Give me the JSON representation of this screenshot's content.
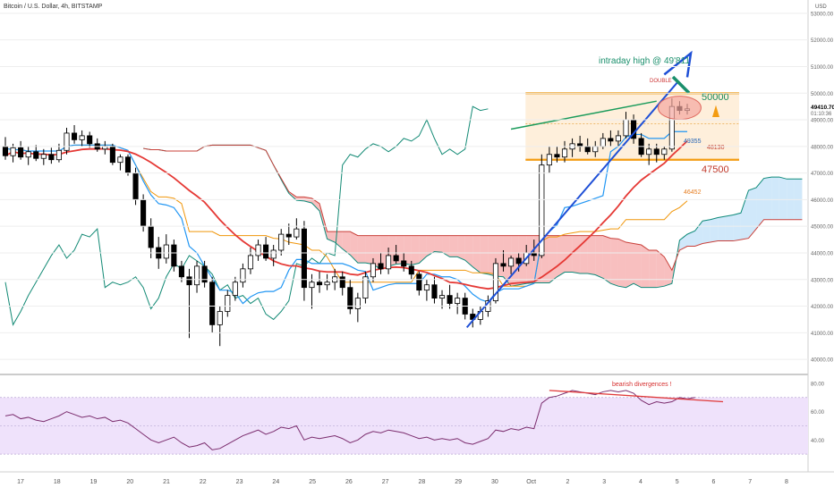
{
  "header": {
    "symbol": "Bitcoin / U.S. Dollar, 4h, BITSTAMP",
    "currency": "USD"
  },
  "colors": {
    "up_candle": "#ffffff",
    "down_candle": "#000000",
    "conversion_line": "#2196f3",
    "base_line": "#e53935",
    "lagging_span": "#138a75",
    "kumo_bull_fill": "#a9d6f5",
    "kumo_bear_fill": "#f28b8b",
    "trendline": "#1e4fd6",
    "orange_level": "#f39c12",
    "rsi_band": "#efe2fb",
    "rsi_line": "#7b2d6e"
  },
  "chart_data": [
    {
      "type": "candlestick",
      "title": "",
      "ylim": [
        39500,
        53500
      ],
      "y_ticks": [
        "40000.00",
        "41000.00",
        "42000.00",
        "43000.00",
        "44000.00",
        "45000.00",
        "46000.00",
        "47000.00",
        "48000.00",
        "49000.00",
        "50000.00",
        "51000.00",
        "52000.00",
        "53000.00"
      ],
      "last_price": "49410.70",
      "countdown": "01:10:36",
      "x_tick_labels": [
        "17",
        "18",
        "19",
        "20",
        "21",
        "22",
        "23",
        "24",
        "25",
        "26",
        "27",
        "28",
        "29",
        "30",
        "Oct",
        "2",
        "3",
        "4",
        "5",
        "6",
        "7",
        "8"
      ],
      "candles": [
        {
          "o": 48000,
          "h": 48350,
          "l": 47500,
          "c": 47650
        },
        {
          "o": 47650,
          "h": 48100,
          "l": 47400,
          "c": 47950
        },
        {
          "o": 47950,
          "h": 48200,
          "l": 47500,
          "c": 47600
        },
        {
          "o": 47600,
          "h": 48000,
          "l": 47300,
          "c": 47800
        },
        {
          "o": 47800,
          "h": 48050,
          "l": 47450,
          "c": 47550
        },
        {
          "o": 47550,
          "h": 47900,
          "l": 47300,
          "c": 47700
        },
        {
          "o": 47700,
          "h": 47950,
          "l": 47350,
          "c": 47500
        },
        {
          "o": 47500,
          "h": 48100,
          "l": 47400,
          "c": 47850
        },
        {
          "o": 47850,
          "h": 48700,
          "l": 47700,
          "c": 48500
        },
        {
          "o": 48500,
          "h": 48800,
          "l": 48100,
          "c": 48250
        },
        {
          "o": 48250,
          "h": 48600,
          "l": 48000,
          "c": 48400
        },
        {
          "o": 48400,
          "h": 48550,
          "l": 47950,
          "c": 48100
        },
        {
          "o": 48100,
          "h": 48300,
          "l": 47800,
          "c": 47900
        },
        {
          "o": 47900,
          "h": 48200,
          "l": 47700,
          "c": 48000
        },
        {
          "o": 48000,
          "h": 48100,
          "l": 47300,
          "c": 47400
        },
        {
          "o": 47400,
          "h": 47700,
          "l": 47100,
          "c": 47600
        },
        {
          "o": 47600,
          "h": 47700,
          "l": 46900,
          "c": 47000
        },
        {
          "o": 47000,
          "h": 47200,
          "l": 45800,
          "c": 46000
        },
        {
          "o": 46000,
          "h": 46200,
          "l": 44800,
          "c": 45000
        },
        {
          "o": 45000,
          "h": 45300,
          "l": 43800,
          "c": 44200
        },
        {
          "o": 44200,
          "h": 44600,
          "l": 43400,
          "c": 43800
        },
        {
          "o": 43800,
          "h": 44700,
          "l": 43600,
          "c": 44300
        },
        {
          "o": 44300,
          "h": 44500,
          "l": 43300,
          "c": 43500
        },
        {
          "o": 43500,
          "h": 43700,
          "l": 42900,
          "c": 43100
        },
        {
          "o": 43100,
          "h": 43400,
          "l": 40800,
          "c": 42800
        },
        {
          "o": 42800,
          "h": 43700,
          "l": 42500,
          "c": 43500
        },
        {
          "o": 43500,
          "h": 43700,
          "l": 42700,
          "c": 42900
        },
        {
          "o": 42900,
          "h": 43100,
          "l": 41000,
          "c": 41300
        },
        {
          "o": 41300,
          "h": 42000,
          "l": 40500,
          "c": 41800
        },
        {
          "o": 41800,
          "h": 42600,
          "l": 41600,
          "c": 42400
        },
        {
          "o": 42400,
          "h": 43100,
          "l": 42200,
          "c": 42900
        },
        {
          "o": 42900,
          "h": 43600,
          "l": 42700,
          "c": 43400
        },
        {
          "o": 43400,
          "h": 44200,
          "l": 43200,
          "c": 43900
        },
        {
          "o": 43900,
          "h": 44500,
          "l": 43700,
          "c": 44300
        },
        {
          "o": 44300,
          "h": 44600,
          "l": 43700,
          "c": 43800
        },
        {
          "o": 43800,
          "h": 44300,
          "l": 43500,
          "c": 44100
        },
        {
          "o": 44100,
          "h": 44900,
          "l": 43900,
          "c": 44700
        },
        {
          "o": 44700,
          "h": 45100,
          "l": 44300,
          "c": 44600
        },
        {
          "o": 44600,
          "h": 45300,
          "l": 44500,
          "c": 44900
        },
        {
          "o": 44900,
          "h": 45200,
          "l": 42200,
          "c": 42700
        },
        {
          "o": 42700,
          "h": 43200,
          "l": 41900,
          "c": 42900
        },
        {
          "o": 42900,
          "h": 43300,
          "l": 42500,
          "c": 42800
        },
        {
          "o": 42800,
          "h": 43200,
          "l": 42600,
          "c": 42900
        },
        {
          "o": 42900,
          "h": 43400,
          "l": 42600,
          "c": 43100
        },
        {
          "o": 43100,
          "h": 43300,
          "l": 42400,
          "c": 42700
        },
        {
          "o": 42700,
          "h": 43000,
          "l": 41700,
          "c": 41900
        },
        {
          "o": 41900,
          "h": 42500,
          "l": 41400,
          "c": 42300
        },
        {
          "o": 42300,
          "h": 43300,
          "l": 42100,
          "c": 43100
        },
        {
          "o": 43100,
          "h": 43800,
          "l": 42900,
          "c": 43600
        },
        {
          "o": 43600,
          "h": 44000,
          "l": 43200,
          "c": 43400
        },
        {
          "o": 43400,
          "h": 44200,
          "l": 43200,
          "c": 43900
        },
        {
          "o": 43900,
          "h": 44300,
          "l": 43600,
          "c": 43700
        },
        {
          "o": 43700,
          "h": 44000,
          "l": 43300,
          "c": 43500
        },
        {
          "o": 43500,
          "h": 43700,
          "l": 43000,
          "c": 43200
        },
        {
          "o": 43200,
          "h": 43300,
          "l": 42400,
          "c": 42600
        },
        {
          "o": 42600,
          "h": 43000,
          "l": 42200,
          "c": 42800
        },
        {
          "o": 42800,
          "h": 43100,
          "l": 42100,
          "c": 42300
        },
        {
          "o": 42300,
          "h": 42600,
          "l": 41900,
          "c": 42400
        },
        {
          "o": 42400,
          "h": 42800,
          "l": 41900,
          "c": 42100
        },
        {
          "o": 42100,
          "h": 42500,
          "l": 41700,
          "c": 42300
        },
        {
          "o": 42300,
          "h": 42500,
          "l": 41500,
          "c": 41700
        },
        {
          "o": 41700,
          "h": 41900,
          "l": 41200,
          "c": 41500
        },
        {
          "o": 41500,
          "h": 42000,
          "l": 41300,
          "c": 41800
        },
        {
          "o": 41800,
          "h": 42400,
          "l": 41600,
          "c": 42200
        },
        {
          "o": 42200,
          "h": 43800,
          "l": 42100,
          "c": 43600
        },
        {
          "o": 43600,
          "h": 44100,
          "l": 43300,
          "c": 43500
        },
        {
          "o": 43500,
          "h": 43900,
          "l": 43200,
          "c": 43800
        },
        {
          "o": 43800,
          "h": 44000,
          "l": 43300,
          "c": 43600
        },
        {
          "o": 43600,
          "h": 44300,
          "l": 43500,
          "c": 44000
        },
        {
          "o": 44000,
          "h": 44500,
          "l": 43700,
          "c": 43900
        },
        {
          "o": 43900,
          "h": 47700,
          "l": 43800,
          "c": 47300
        },
        {
          "o": 47300,
          "h": 48000,
          "l": 47000,
          "c": 47700
        },
        {
          "o": 47700,
          "h": 48000,
          "l": 47400,
          "c": 47600
        },
        {
          "o": 47600,
          "h": 48200,
          "l": 47400,
          "c": 47900
        },
        {
          "o": 47900,
          "h": 48300,
          "l": 47600,
          "c": 48100
        },
        {
          "o": 48100,
          "h": 48400,
          "l": 47800,
          "c": 48000
        },
        {
          "o": 48000,
          "h": 48300,
          "l": 47700,
          "c": 47800
        },
        {
          "o": 47800,
          "h": 48200,
          "l": 47600,
          "c": 48000
        },
        {
          "o": 48000,
          "h": 48500,
          "l": 47900,
          "c": 48300
        },
        {
          "o": 48300,
          "h": 48600,
          "l": 48000,
          "c": 48200
        },
        {
          "o": 48200,
          "h": 48600,
          "l": 48000,
          "c": 48400
        },
        {
          "o": 48400,
          "h": 49300,
          "l": 48300,
          "c": 49000
        },
        {
          "o": 49000,
          "h": 49200,
          "l": 48100,
          "c": 48300
        },
        {
          "o": 48300,
          "h": 48500,
          "l": 47600,
          "c": 47700
        },
        {
          "o": 47700,
          "h": 48100,
          "l": 47300,
          "c": 47900
        },
        {
          "o": 47900,
          "h": 48100,
          "l": 47400,
          "c": 47700
        },
        {
          "o": 47700,
          "h": 48000,
          "l": 47500,
          "c": 47900
        },
        {
          "o": 47900,
          "h": 49811,
          "l": 47800,
          "c": 49500
        },
        {
          "o": 49500,
          "h": 49700,
          "l": 49200,
          "c": 49350
        },
        {
          "o": 49350,
          "h": 49600,
          "l": 49200,
          "c": 49410.7
        }
      ],
      "annotations": [
        {
          "text": "intraday high  @ 49'811"
        },
        {
          "text": "DOUBLE"
        },
        {
          "text": "50000"
        },
        {
          "text": "49355"
        },
        {
          "text": "48130"
        },
        {
          "text": "47500"
        },
        {
          "text": "46452"
        }
      ]
    },
    {
      "type": "line",
      "title": "",
      "ylim": [
        20,
        85
      ],
      "y_ticks": [
        "40.00",
        "60.00",
        "80.00"
      ],
      "series": [
        {
          "values": [
            57,
            58,
            55,
            56,
            54,
            53,
            55,
            57,
            60,
            58,
            56,
            57,
            55,
            56,
            53,
            54,
            52,
            48,
            44,
            40,
            38,
            40,
            42,
            38,
            35,
            36,
            38,
            33,
            34,
            37,
            40,
            43,
            45,
            47,
            44,
            46,
            49,
            48,
            50,
            40,
            42,
            41,
            42,
            43,
            41,
            38,
            40,
            44,
            46,
            45,
            47,
            46,
            45,
            43,
            41,
            42,
            40,
            41,
            40,
            41,
            38,
            37,
            39,
            41,
            47,
            46,
            48,
            47,
            49,
            48,
            66,
            70,
            71,
            73,
            75,
            74,
            73,
            72,
            74,
            75,
            74,
            75,
            73,
            68,
            65,
            67,
            66,
            67,
            70,
            69,
            70
          ]
        }
      ],
      "annotations": [
        {
          "text": "bearish divergences !"
        }
      ]
    }
  ]
}
